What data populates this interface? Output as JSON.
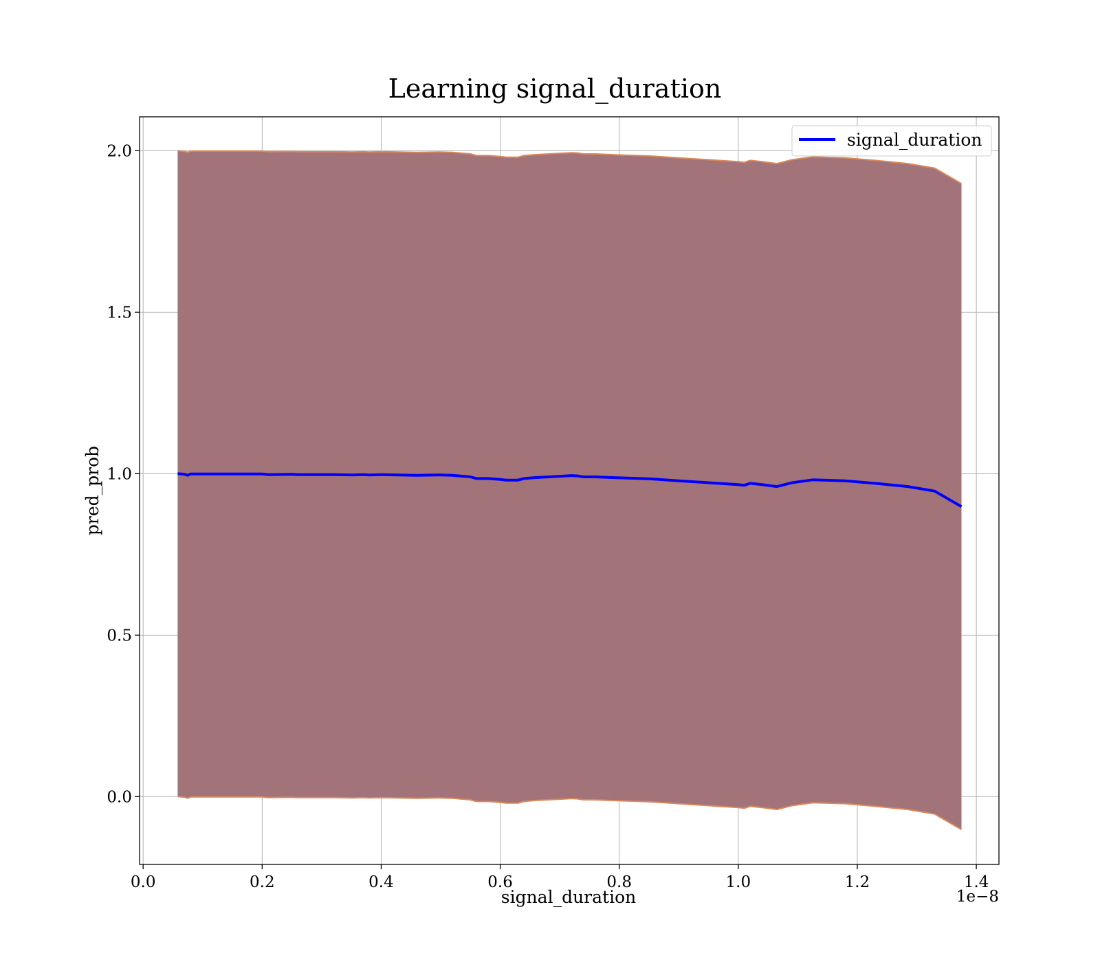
{
  "chart_data": {
    "type": "area",
    "title": "Learning signal_duration",
    "xlabel": "signal_duration",
    "ylabel": "pred_prob",
    "x_offset_label": "1e−8",
    "xlim": [
      -0.006,
      1.438
    ],
    "ylim": [
      -0.21,
      2.105
    ],
    "xticks": [
      0.0,
      0.2,
      0.4,
      0.6,
      0.8,
      1.0,
      1.2,
      1.4
    ],
    "xtick_labels": [
      "0.0",
      "0.2",
      "0.4",
      "0.6",
      "0.8",
      "1.0",
      "1.2",
      "1.4"
    ],
    "yticks": [
      0.0,
      0.5,
      1.0,
      1.5,
      2.0
    ],
    "ytick_labels": [
      "0.0",
      "0.5",
      "1.0",
      "1.5",
      "2.0"
    ],
    "grid": true,
    "legend_position": "top-right",
    "colors": {
      "line": "#0000ff",
      "band_fill": "#a3737a",
      "band_edge": "#d9895b"
    },
    "series": [
      {
        "name": "signal_duration",
        "x": [
          0.058,
          0.07,
          0.075,
          0.08,
          0.12,
          0.15,
          0.2,
          0.21,
          0.25,
          0.26,
          0.3,
          0.32,
          0.35,
          0.37,
          0.38,
          0.4,
          0.43,
          0.46,
          0.5,
          0.52,
          0.55,
          0.56,
          0.58,
          0.6,
          0.61,
          0.63,
          0.64,
          0.66,
          0.7,
          0.72,
          0.73,
          0.74,
          0.76,
          0.8,
          0.85,
          0.9,
          0.95,
          1.0,
          1.01,
          1.02,
          1.04,
          1.065,
          1.09,
          1.125,
          1.18,
          1.23,
          1.285,
          1.33,
          1.375
        ],
        "y": [
          1.0,
          0.998,
          0.995,
          0.999,
          0.999,
          0.999,
          0.999,
          0.997,
          0.998,
          0.997,
          0.997,
          0.997,
          0.996,
          0.997,
          0.996,
          0.997,
          0.996,
          0.995,
          0.996,
          0.995,
          0.99,
          0.985,
          0.985,
          0.982,
          0.98,
          0.98,
          0.985,
          0.988,
          0.992,
          0.994,
          0.993,
          0.99,
          0.99,
          0.987,
          0.984,
          0.978,
          0.972,
          0.966,
          0.964,
          0.97,
          0.966,
          0.96,
          0.972,
          0.981,
          0.978,
          0.97,
          0.96,
          0.946,
          0.898
        ],
        "upper": [
          2.0,
          1.998,
          1.995,
          1.999,
          1.999,
          1.999,
          1.999,
          1.997,
          1.998,
          1.997,
          1.997,
          1.997,
          1.996,
          1.997,
          1.996,
          1.997,
          1.996,
          1.995,
          1.996,
          1.995,
          1.99,
          1.985,
          1.985,
          1.982,
          1.98,
          1.98,
          1.985,
          1.988,
          1.992,
          1.994,
          1.993,
          1.99,
          1.99,
          1.987,
          1.984,
          1.978,
          1.972,
          1.966,
          1.964,
          1.97,
          1.966,
          1.96,
          1.972,
          1.981,
          1.978,
          1.97,
          1.96,
          1.946,
          1.898
        ],
        "lower": [
          0.0,
          -0.002,
          -0.005,
          -0.001,
          -0.001,
          -0.001,
          -0.001,
          -0.003,
          -0.002,
          -0.003,
          -0.003,
          -0.003,
          -0.004,
          -0.003,
          -0.004,
          -0.003,
          -0.004,
          -0.005,
          -0.004,
          -0.005,
          -0.01,
          -0.015,
          -0.015,
          -0.018,
          -0.02,
          -0.02,
          -0.015,
          -0.012,
          -0.008,
          -0.006,
          -0.007,
          -0.01,
          -0.01,
          -0.013,
          -0.016,
          -0.022,
          -0.028,
          -0.034,
          -0.036,
          -0.03,
          -0.034,
          -0.04,
          -0.028,
          -0.019,
          -0.022,
          -0.03,
          -0.04,
          -0.054,
          -0.102
        ]
      }
    ]
  }
}
